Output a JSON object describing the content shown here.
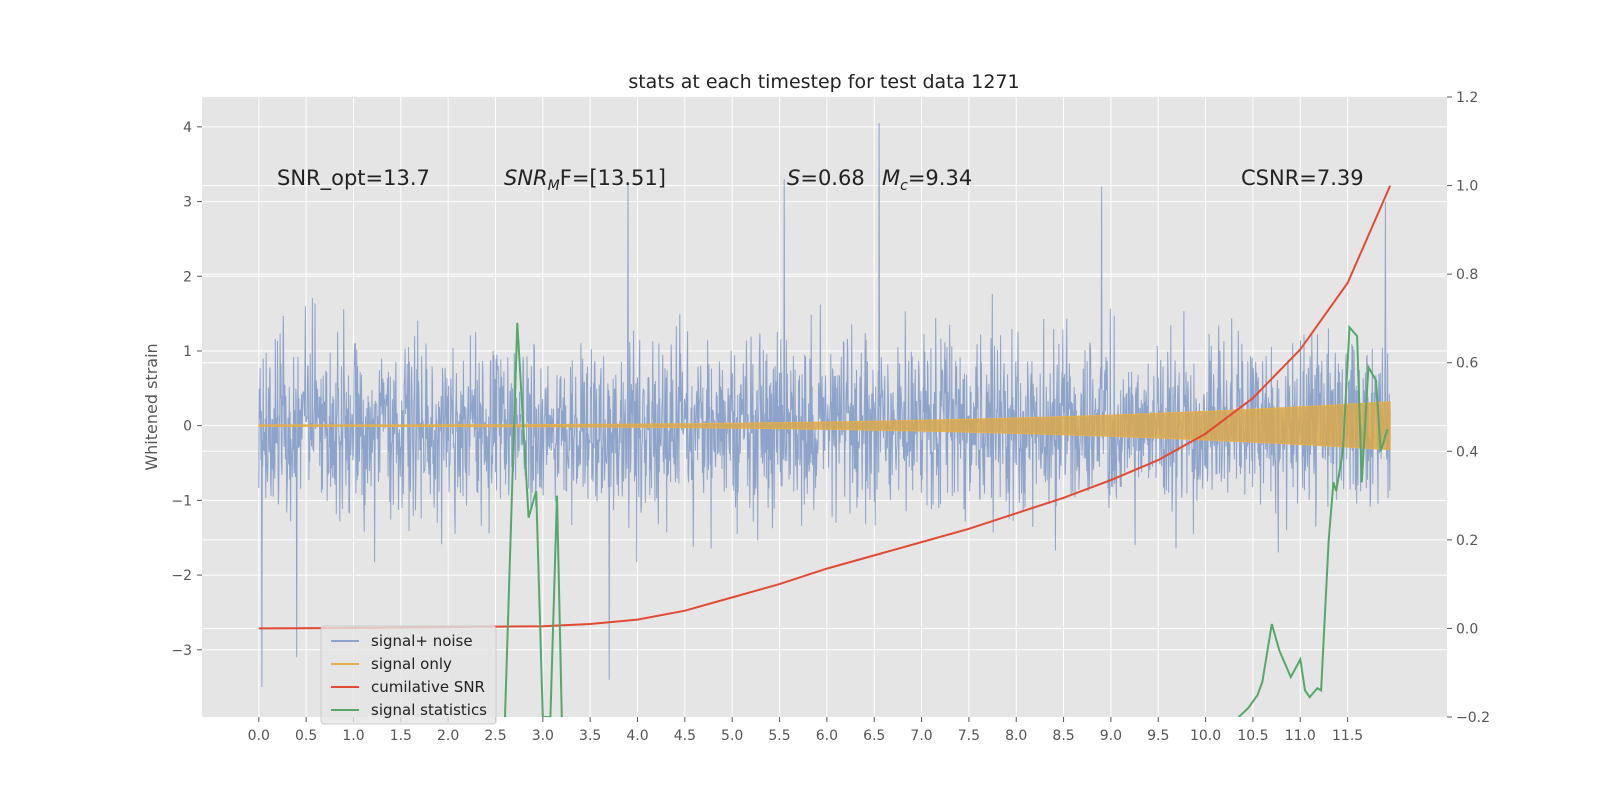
{
  "chart_data": {
    "type": "line",
    "title": "stats at each timestep for test data 1271",
    "ylabel": "Whitened strain",
    "y2label": "",
    "xlabel": "",
    "xlim": [
      -0.6,
      12.55
    ],
    "ylim": [
      -3.9,
      4.4
    ],
    "y2lim": [
      -0.2,
      1.2
    ],
    "grid": true,
    "x_ticks": [
      "0.0",
      "0.5",
      "1.0",
      "1.5",
      "2.0",
      "2.5",
      "3.0",
      "3.5",
      "4.0",
      "4.5",
      "5.0",
      "5.5",
      "6.0",
      "6.5",
      "7.0",
      "7.5",
      "8.0",
      "8.5",
      "9.0",
      "9.5",
      "10.0",
      "10.5",
      "11.0",
      "11.5"
    ],
    "y_ticks": [
      4,
      3,
      2,
      1,
      0,
      -1,
      -2,
      -3
    ],
    "y_tick_labels": [
      "4",
      "3",
      "2",
      "1",
      "0",
      "−1",
      "−2",
      "−3"
    ],
    "y2_ticks": [
      1.2,
      1.0,
      0.8,
      0.6,
      0.4,
      0.2,
      0.0,
      -0.2
    ],
    "y2_tick_labels": [
      "1.2",
      "1.0",
      "0.8",
      "0.6",
      "0.4",
      "0.2",
      "0.0",
      "−0.2"
    ],
    "annotations": {
      "snr_opt": "SNR_opt=13.7",
      "snr_mf_main": "SNR",
      "snr_mf_sub": "M",
      "snr_mf_rest": "F=[13.51]",
      "s_main": "S",
      "s_rest": "=0.68",
      "mc_main": "M",
      "mc_sub": "c",
      "mc_rest": "=9.34",
      "csnr": "CSNR=7.39"
    },
    "legend_position": "lower left",
    "series": [
      {
        "name": "signal+ noise",
        "color": "#8EA3C9",
        "axis": "left",
        "style": "noise",
        "x_range": [
          0.0,
          11.95
        ],
        "envelope_upper": 2.4,
        "envelope_lower": -2.4,
        "spikes": [
          [
            0.03,
            -3.5
          ],
          [
            3.9,
            3.25
          ],
          [
            5.55,
            3.3
          ],
          [
            6.55,
            4.05
          ],
          [
            8.9,
            3.2
          ],
          [
            11.9,
            3.0
          ],
          [
            3.7,
            -3.4
          ],
          [
            0.4,
            -3.1
          ]
        ]
      },
      {
        "name": "signal only",
        "color": "#E6B04A",
        "axis": "left",
        "style": "chirp",
        "x_range": [
          0.0,
          11.95
        ],
        "amplitude_start": 0.01,
        "amplitude_end": 0.32
      },
      {
        "name": "cumilative SNR",
        "color": "#E24A33",
        "axis": "right",
        "x": [
          0.0,
          1.0,
          2.0,
          3.0,
          3.5,
          4.0,
          4.5,
          5.0,
          5.5,
          6.0,
          6.5,
          7.0,
          7.5,
          8.0,
          8.5,
          9.0,
          9.5,
          10.0,
          10.5,
          11.0,
          11.5,
          11.95
        ],
        "y": [
          0.0,
          0.001,
          0.003,
          0.005,
          0.01,
          0.02,
          0.04,
          0.07,
          0.1,
          0.135,
          0.165,
          0.195,
          0.225,
          0.26,
          0.295,
          0.335,
          0.38,
          0.44,
          0.52,
          0.63,
          0.78,
          1.0
        ]
      },
      {
        "name": "signal statistics",
        "color": "#55A868",
        "axis": "right",
        "x": [
          2.6,
          2.73,
          2.85,
          2.93,
          3.0,
          3.08,
          3.15,
          3.2,
          10.35,
          10.45,
          10.55,
          10.6,
          10.7,
          10.78,
          10.9,
          11.0,
          11.05,
          11.1,
          11.18,
          11.22,
          11.3,
          11.35,
          11.38,
          11.45,
          11.52,
          11.6,
          11.65,
          11.72,
          11.8,
          11.85,
          11.92
        ],
        "y": [
          -0.2,
          0.69,
          0.25,
          0.31,
          -0.2,
          -0.2,
          0.3,
          -0.2,
          -0.2,
          -0.18,
          -0.15,
          -0.12,
          0.01,
          -0.05,
          -0.11,
          -0.07,
          -0.14,
          -0.155,
          -0.135,
          -0.14,
          0.2,
          0.33,
          0.31,
          0.4,
          0.68,
          0.66,
          0.33,
          0.59,
          0.56,
          0.4,
          0.45
        ]
      }
    ]
  }
}
